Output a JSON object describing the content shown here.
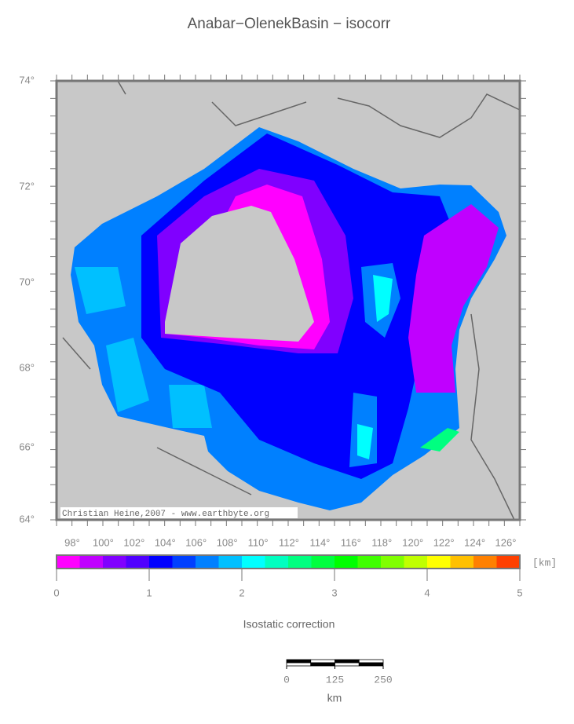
{
  "title": "Anabar−OlenekBasin − isocorr",
  "map": {
    "lat_labels": [
      "74°",
      "72°",
      "70°",
      "68°",
      "66°",
      "64°"
    ],
    "lon_labels": [
      "98°",
      "100°",
      "102°",
      "104°",
      "106°",
      "108°",
      "110°",
      "112°",
      "114°",
      "116°",
      "118°",
      "120°",
      "122°",
      "124°",
      "126°"
    ],
    "credit": "Christian Heine,2007 - www.earthbyte.org"
  },
  "colorbar": {
    "colors": [
      "#ff00ff",
      "#c000ff",
      "#8000ff",
      "#5000ff",
      "#0000ff",
      "#0040ff",
      "#0080ff",
      "#00c0ff",
      "#00ffff",
      "#00ffc0",
      "#00ff80",
      "#00ff40",
      "#00ff00",
      "#40ff00",
      "#80ff00",
      "#c0ff00",
      "#ffff00",
      "#ffc000",
      "#ff8000",
      "#ff4000"
    ],
    "lim": [
      0,
      5
    ],
    "ticks": [
      0,
      1,
      2,
      3,
      4,
      5
    ],
    "unit": "[km]",
    "label": "Isostatic correction"
  },
  "scalebar": {
    "lim": [
      0,
      250
    ],
    "ticks": [
      0,
      125,
      250
    ],
    "unit": "km"
  }
}
